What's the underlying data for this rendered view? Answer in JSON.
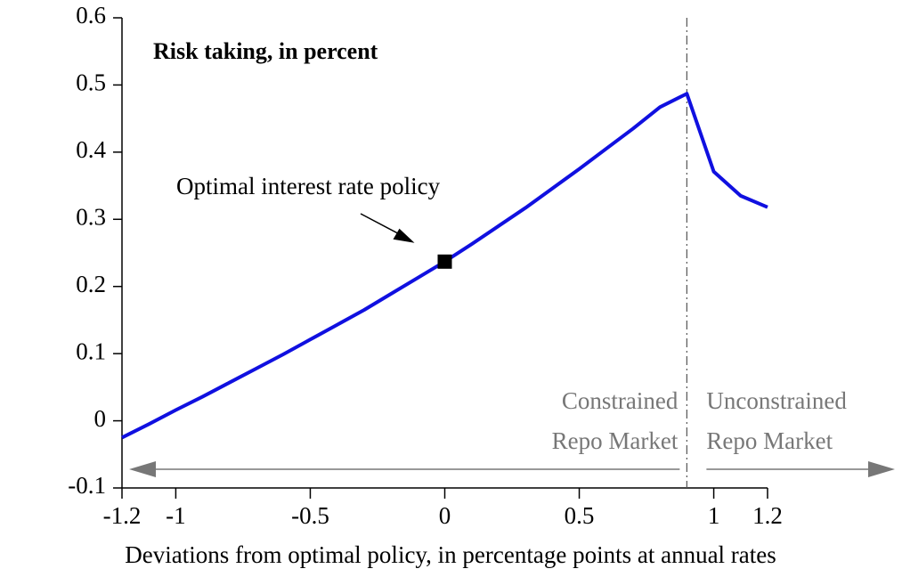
{
  "chart_data": {
    "type": "line",
    "title": "Risk taking, in percent",
    "xlabel": "Deviations from optimal policy, in percentage points at annual rates",
    "x": [
      -1.2,
      -1.1,
      -1.0,
      -0.9,
      -0.8,
      -0.7,
      -0.6,
      -0.5,
      -0.4,
      -0.3,
      -0.2,
      -0.1,
      0,
      0.1,
      0.2,
      0.3,
      0.4,
      0.5,
      0.6,
      0.7,
      0.8,
      0.9,
      1.0,
      1.1,
      1.2
    ],
    "values": [
      -0.025,
      -0.005,
      0.016,
      0.036,
      0.057,
      0.078,
      0.099,
      0.121,
      0.143,
      0.165,
      0.189,
      0.213,
      0.237,
      0.263,
      0.29,
      0.317,
      0.346,
      0.375,
      0.405,
      0.435,
      0.467,
      0.487,
      0.371,
      0.335,
      0.318
    ],
    "color": "#1010e0",
    "xlim": [
      -1.2,
      1.2
    ],
    "ylim": [
      -0.1,
      0.6
    ],
    "xticks": [
      -1.2,
      -1,
      -0.5,
      0,
      0.5,
      1,
      1.2
    ],
    "yticks": [
      -0.1,
      0,
      0.1,
      0.2,
      0.3,
      0.4,
      0.5,
      0.6
    ],
    "annotation": {
      "text": "Optimal interest rate policy",
      "x": 0,
      "y": 0.237
    },
    "vline": 0.9,
    "regions": [
      {
        "lines": [
          "Constrained",
          "Repo Market"
        ]
      },
      {
        "lines": [
          "Unconstrained",
          "Repo Market"
        ]
      }
    ]
  }
}
